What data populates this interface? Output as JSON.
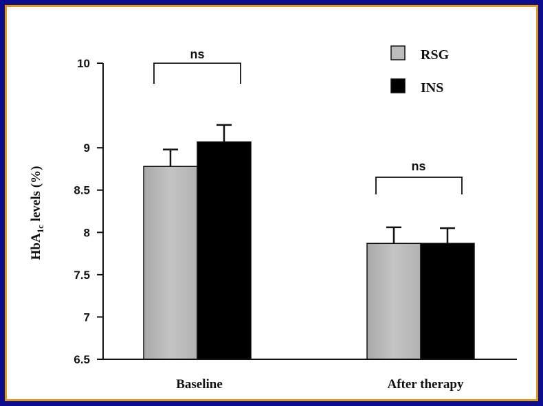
{
  "chart_data": {
    "type": "bar",
    "categories": [
      "Baseline",
      "After therapy"
    ],
    "series": [
      {
        "name": "RSG",
        "values": [
          8.78,
          7.87
        ],
        "errors": [
          0.2,
          0.19
        ],
        "color": "#bdbdbd"
      },
      {
        "name": "INS",
        "values": [
          9.07,
          7.87
        ],
        "errors": [
          0.2,
          0.18
        ],
        "color": "#000000"
      }
    ],
    "ylabel": "HbA1c levels (%)",
    "ylabel_main": "HbA",
    "ylabel_sub": "1c",
    "ylabel_rest": " levels (%)",
    "ylim": [
      6.5,
      10
    ],
    "yticks": [
      "10",
      "9",
      "8.5",
      "8",
      "7.5",
      "7",
      "6.5"
    ],
    "ytick_values": [
      10,
      9,
      8.5,
      8,
      7.5,
      7,
      6.5
    ],
    "annotations": [
      "ns",
      "ns"
    ],
    "legend": "top-right",
    "grid": false
  },
  "colors": {
    "background": "#0c0c8e",
    "border_accent": "#e39a1c",
    "plot_bg": "#ffffff"
  }
}
